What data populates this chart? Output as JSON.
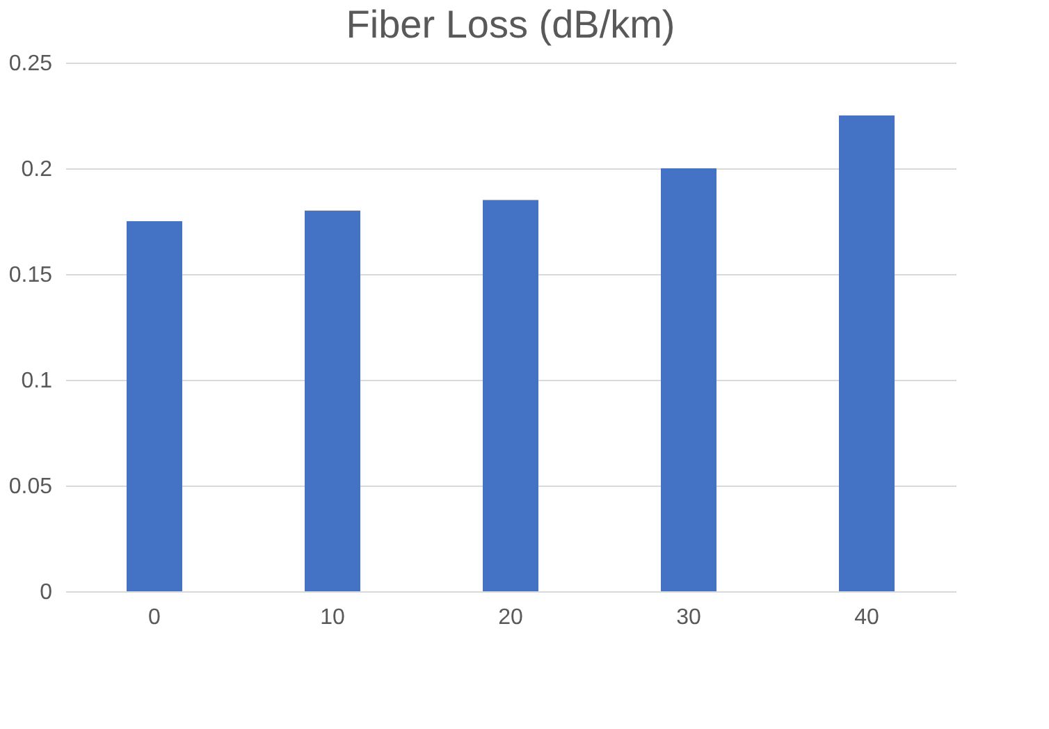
{
  "chart_data": {
    "type": "bar",
    "title": "Fiber Loss (dB/km)",
    "categories": [
      "0",
      "10",
      "20",
      "30",
      "40"
    ],
    "values": [
      0.175,
      0.18,
      0.185,
      0.2,
      0.225
    ],
    "color": "#4472c4",
    "ylim": [
      0,
      0.25
    ],
    "yticks": [
      0,
      0.05,
      0.1,
      0.15,
      0.2,
      0.25
    ],
    "grid": "y"
  }
}
